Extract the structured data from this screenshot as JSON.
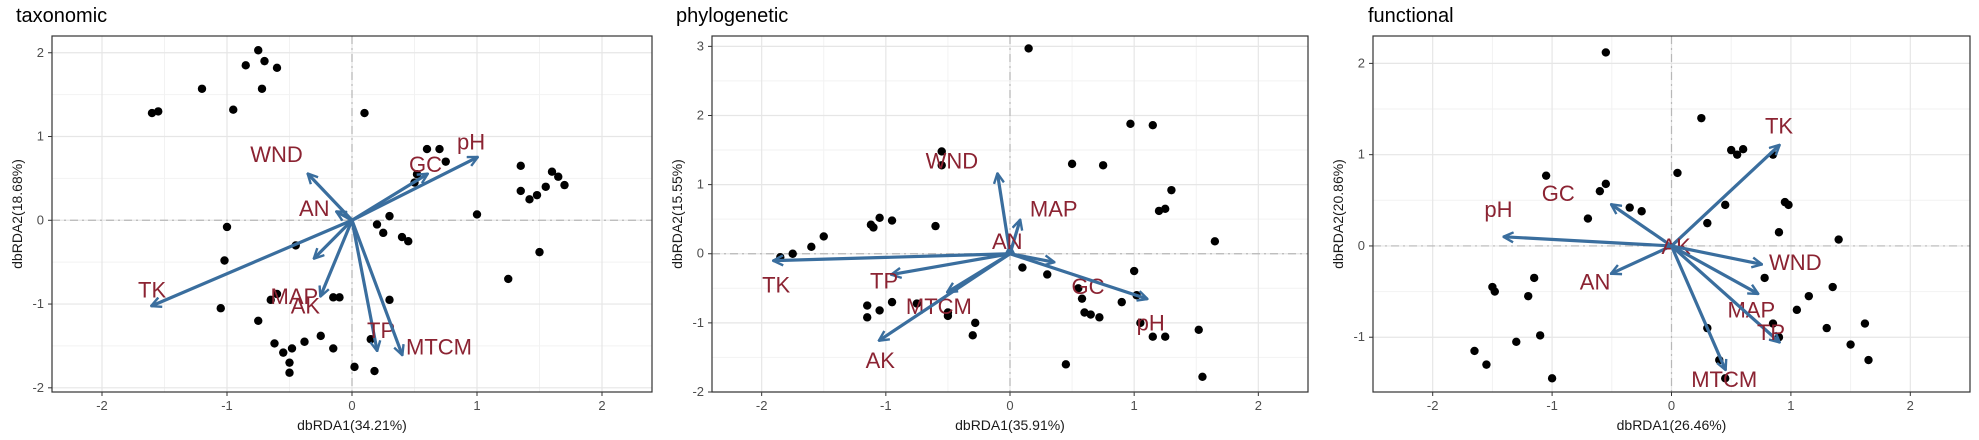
{
  "chart_data": [
    {
      "type": "scatter",
      "title": "taxonomic",
      "xlabel": "dbRDA1(34.21%)",
      "ylabel": "dbRDA2(18.68%)",
      "xlim": [
        -2.4,
        2.4
      ],
      "ylim": [
        -2.05,
        2.2
      ],
      "xticks": [
        -2,
        -1,
        0,
        1,
        2
      ],
      "yticks": [
        -2,
        -1,
        0,
        1,
        2
      ],
      "grid": true,
      "colors": {
        "points": "#000000",
        "arrows": "#3a6e9e",
        "labels": "#8b2332"
      },
      "points": [
        [
          -1.6,
          1.28
        ],
        [
          -1.55,
          1.3
        ],
        [
          -1.2,
          1.57
        ],
        [
          -0.95,
          1.32
        ],
        [
          -0.85,
          1.85
        ],
        [
          -0.75,
          2.03
        ],
        [
          -0.7,
          1.9
        ],
        [
          -0.72,
          1.57
        ],
        [
          -0.6,
          1.82
        ],
        [
          0.1,
          1.28
        ],
        [
          -1.0,
          -0.08
        ],
        [
          -1.02,
          -0.48
        ],
        [
          -1.05,
          -1.05
        ],
        [
          -0.75,
          -1.2
        ],
        [
          -0.65,
          -0.95
        ],
        [
          -0.6,
          -0.88
        ],
        [
          -0.62,
          -1.47
        ],
        [
          -0.55,
          -1.58
        ],
        [
          -0.48,
          -1.53
        ],
        [
          -0.5,
          -1.7
        ],
        [
          -0.5,
          -1.82
        ],
        [
          -0.38,
          -1.45
        ],
        [
          -0.25,
          -1.38
        ],
        [
          -0.15,
          -1.53
        ],
        [
          -0.15,
          -0.92
        ],
        [
          -0.1,
          -0.92
        ],
        [
          0.02,
          -1.75
        ],
        [
          0.18,
          -1.8
        ],
        [
          0.15,
          -1.42
        ],
        [
          0.3,
          -0.95
        ],
        [
          -0.45,
          -0.3
        ],
        [
          0.25,
          -0.15
        ],
        [
          0.2,
          -0.05
        ],
        [
          0.3,
          0.05
        ],
        [
          0.4,
          -0.2
        ],
        [
          0.45,
          -0.25
        ],
        [
          0.5,
          0.45
        ],
        [
          0.52,
          0.55
        ],
        [
          0.6,
          0.85
        ],
        [
          0.7,
          0.85
        ],
        [
          0.75,
          0.7
        ],
        [
          1.0,
          0.07
        ],
        [
          1.25,
          -0.7
        ],
        [
          1.35,
          0.65
        ],
        [
          1.35,
          0.35
        ],
        [
          1.42,
          0.25
        ],
        [
          1.48,
          0.3
        ],
        [
          1.55,
          0.4
        ],
        [
          1.6,
          0.58
        ],
        [
          1.65,
          0.52
        ],
        [
          1.7,
          0.42
        ],
        [
          1.5,
          -0.38
        ]
      ],
      "vectors": [
        {
          "label": "pH",
          "x": 1.0,
          "y": 0.75
        },
        {
          "label": "GC",
          "x": 0.6,
          "y": 0.55
        },
        {
          "label": "WND",
          "x": -0.35,
          "y": 0.55
        },
        {
          "label": "AN",
          "x": -0.12,
          "y": 0.1
        },
        {
          "label": "MAP",
          "x": -0.3,
          "y": -0.45
        },
        {
          "label": "TK",
          "x": -1.6,
          "y": -1.02
        },
        {
          "label": "AK",
          "x": -0.25,
          "y": -0.9
        },
        {
          "label": "TP",
          "x": 0.2,
          "y": -1.55
        },
        {
          "label": "MTCM",
          "x": 0.4,
          "y": -1.6
        }
      ]
    },
    {
      "type": "scatter",
      "title": "phylogenetic",
      "xlabel": "dbRDA1(35.91%)",
      "ylabel": "dbRDA2(15.55%)",
      "xlim": [
        -2.4,
        2.4
      ],
      "ylim": [
        -2.0,
        3.15
      ],
      "xticks": [
        -2,
        -1,
        0,
        1,
        2
      ],
      "yticks": [
        -2,
        -1,
        0,
        1,
        2,
        3
      ],
      "grid": true,
      "colors": {
        "points": "#000000",
        "arrows": "#3a6e9e",
        "labels": "#8b2332"
      },
      "points": [
        [
          0.15,
          2.97
        ],
        [
          -1.1,
          0.38
        ],
        [
          -1.12,
          0.42
        ],
        [
          -1.05,
          0.52
        ],
        [
          -0.95,
          0.48
        ],
        [
          -0.6,
          0.4
        ],
        [
          -1.5,
          0.25
        ],
        [
          -1.6,
          0.1
        ],
        [
          -1.75,
          0.0
        ],
        [
          -1.85,
          -0.05
        ],
        [
          -0.55,
          1.48
        ],
        [
          -0.55,
          1.28
        ],
        [
          0.5,
          1.3
        ],
        [
          0.75,
          1.28
        ],
        [
          0.97,
          1.88
        ],
        [
          1.15,
          1.86
        ],
        [
          1.3,
          0.92
        ],
        [
          1.25,
          0.65
        ],
        [
          1.2,
          0.62
        ],
        [
          1.65,
          0.18
        ],
        [
          -1.15,
          -0.75
        ],
        [
          -1.05,
          -0.82
        ],
        [
          -1.15,
          -0.92
        ],
        [
          -0.95,
          -0.7
        ],
        [
          -0.75,
          -0.72
        ],
        [
          -0.5,
          -0.9
        ],
        [
          -0.28,
          -1.0
        ],
        [
          -0.3,
          -1.18
        ],
        [
          -0.5,
          -0.85
        ],
        [
          0.1,
          -0.2
        ],
        [
          0.3,
          -0.3
        ],
        [
          0.55,
          -0.5
        ],
        [
          0.6,
          -0.85
        ],
        [
          0.65,
          -0.88
        ],
        [
          0.72,
          -0.92
        ],
        [
          0.58,
          -0.65
        ],
        [
          0.45,
          -1.6
        ],
        [
          1.0,
          -0.25
        ],
        [
          1.02,
          -0.6
        ],
        [
          1.05,
          -1.0
        ],
        [
          1.15,
          -1.2
        ],
        [
          1.25,
          -1.2
        ],
        [
          1.52,
          -1.1
        ],
        [
          1.55,
          -1.78
        ],
        [
          0.9,
          -0.7
        ]
      ],
      "vectors": [
        {
          "label": "WND",
          "x": -0.1,
          "y": 1.15
        },
        {
          "label": "MAP",
          "x": 0.08,
          "y": 0.48
        },
        {
          "label": "AN",
          "x": 0.0,
          "y": 0.1
        },
        {
          "label": "GC",
          "x": 0.35,
          "y": -0.12
        },
        {
          "label": "pH",
          "x": 1.1,
          "y": -0.65
        },
        {
          "label": "TK",
          "x": -1.9,
          "y": -0.1
        },
        {
          "label": "TP",
          "x": -0.95,
          "y": -0.3
        },
        {
          "label": "MTCM",
          "x": -0.5,
          "y": -0.55
        },
        {
          "label": "AK",
          "x": -1.05,
          "y": -1.25
        }
      ]
    },
    {
      "type": "scatter",
      "title": "functional",
      "xlabel": "dbRDA1(26.46%)",
      "ylabel": "dbRDA2(20.86%)",
      "xlim": [
        -2.5,
        2.5
      ],
      "ylim": [
        -1.6,
        2.3
      ],
      "xticks": [
        -2,
        -1,
        0,
        1,
        2
      ],
      "yticks": [
        -1,
        0,
        1,
        2
      ],
      "grid": true,
      "colors": {
        "points": "#000000",
        "arrows": "#3a6e9e",
        "labels": "#8b2332"
      },
      "points": [
        [
          -0.55,
          2.12
        ],
        [
          0.25,
          1.4
        ],
        [
          0.5,
          1.05
        ],
        [
          0.55,
          1.0
        ],
        [
          0.6,
          1.06
        ],
        [
          0.85,
          1.0
        ],
        [
          0.95,
          0.48
        ],
        [
          0.98,
          0.45
        ],
        [
          0.05,
          0.8
        ],
        [
          -0.6,
          0.6
        ],
        [
          -0.55,
          0.68
        ],
        [
          -1.05,
          0.77
        ],
        [
          -0.7,
          0.3
        ],
        [
          -0.35,
          0.42
        ],
        [
          -0.25,
          0.38
        ],
        [
          0.3,
          0.25
        ],
        [
          0.45,
          0.45
        ],
        [
          -1.5,
          -0.45
        ],
        [
          -1.48,
          -0.5
        ],
        [
          -1.15,
          -0.35
        ],
        [
          -1.2,
          -0.55
        ],
        [
          -1.3,
          -1.05
        ],
        [
          -1.1,
          -0.98
        ],
        [
          -1.0,
          -1.45
        ],
        [
          -1.55,
          -1.3
        ],
        [
          -1.65,
          -1.15
        ],
        [
          0.9,
          0.15
        ],
        [
          1.4,
          0.07
        ],
        [
          1.35,
          -0.45
        ],
        [
          1.15,
          -0.55
        ],
        [
          1.05,
          -0.7
        ],
        [
          1.3,
          -0.9
        ],
        [
          1.5,
          -1.08
        ],
        [
          1.65,
          -1.25
        ],
        [
          1.62,
          -0.85
        ],
        [
          0.78,
          -0.35
        ],
        [
          0.3,
          -0.9
        ],
        [
          0.4,
          -1.25
        ],
        [
          0.45,
          -1.45
        ],
        [
          0.9,
          -1.0
        ],
        [
          0.85,
          -0.85
        ]
      ],
      "vectors": [
        {
          "label": "TK",
          "x": 0.9,
          "y": 1.1
        },
        {
          "label": "GC",
          "x": -0.5,
          "y": 0.45
        },
        {
          "label": "pH",
          "x": -1.4,
          "y": 0.1
        },
        {
          "label": "AN",
          "x": -0.5,
          "y": -0.3
        },
        {
          "label": "AK",
          "x": 0.0,
          "y": 0.0
        },
        {
          "label": "WND",
          "x": 0.75,
          "y": -0.2
        },
        {
          "label": "MAP",
          "x": 0.72,
          "y": -0.52
        },
        {
          "label": "TP",
          "x": 0.9,
          "y": -1.05
        },
        {
          "label": "MTCM",
          "x": 0.45,
          "y": -1.35
        }
      ]
    }
  ]
}
